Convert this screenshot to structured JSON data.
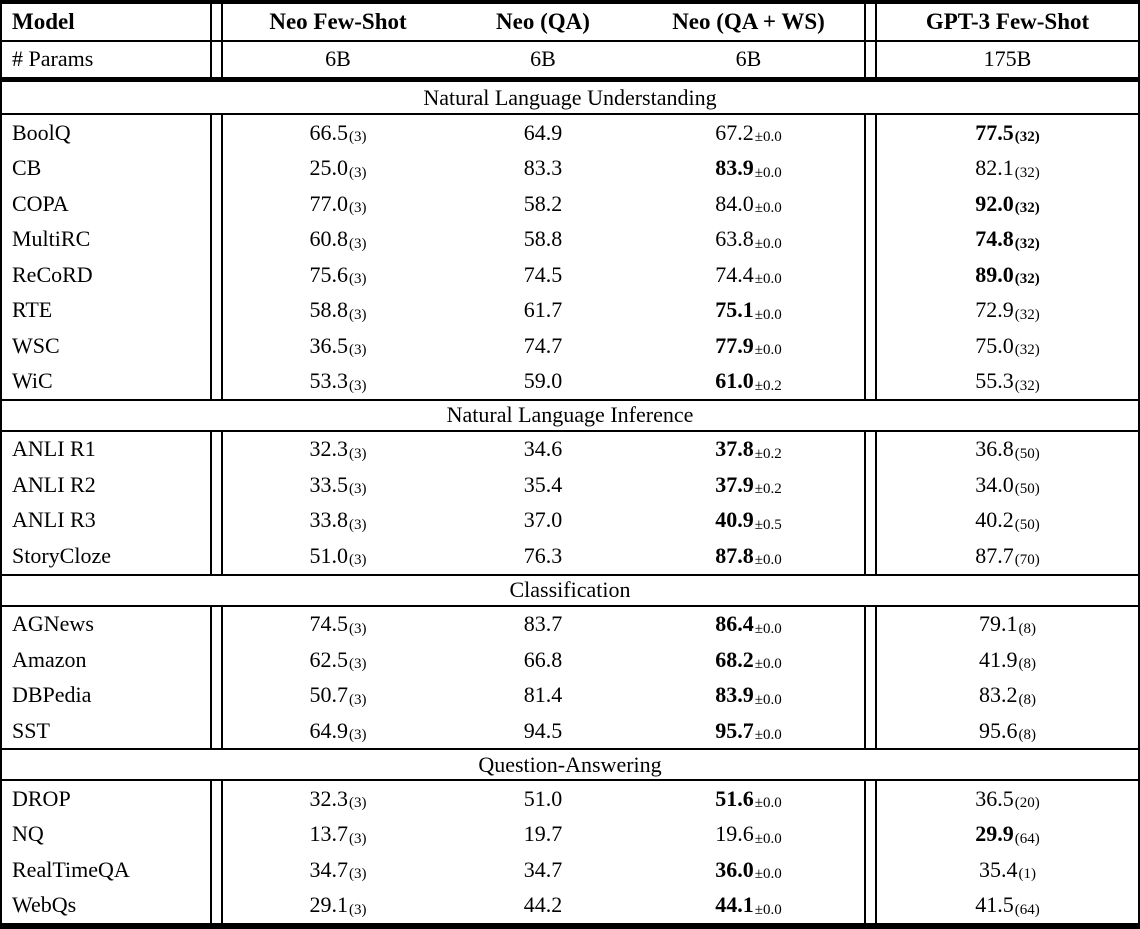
{
  "colors": {
    "text": "#000000",
    "background": "#ffffff",
    "rule": "#000000"
  },
  "table": {
    "header": {
      "model": "Model",
      "columns": [
        "Neo Few-Shot",
        "Neo (QA)",
        "Neo (QA + WS)",
        "GPT-3 Few-Shot"
      ]
    },
    "params_row": {
      "label": "# Params",
      "values": [
        "6B",
        "6B",
        "6B",
        "175B"
      ]
    },
    "sections": [
      {
        "title": "Natural Language Understanding",
        "rows": [
          {
            "task": "BoolQ",
            "cells": [
              {
                "v": "66.5",
                "s": "(3)"
              },
              {
                "v": "64.9"
              },
              {
                "v": "67.2",
                "s": "±0.0"
              },
              {
                "v": "77.5",
                "s": "(32)",
                "b": 1,
                "sb": 1
              }
            ]
          },
          {
            "task": "CB",
            "cells": [
              {
                "v": "25.0",
                "s": "(3)"
              },
              {
                "v": "83.3"
              },
              {
                "v": "83.9",
                "s": "±0.0",
                "b": 1
              },
              {
                "v": "82.1",
                "s": "(32)"
              }
            ]
          },
          {
            "task": "COPA",
            "cells": [
              {
                "v": "77.0",
                "s": "(3)"
              },
              {
                "v": "58.2"
              },
              {
                "v": "84.0",
                "s": "±0.0"
              },
              {
                "v": "92.0",
                "s": "(32)",
                "b": 1,
                "sb": 1
              }
            ]
          },
          {
            "task": "MultiRC",
            "cells": [
              {
                "v": "60.8",
                "s": "(3)"
              },
              {
                "v": "58.8"
              },
              {
                "v": "63.8",
                "s": "±0.0"
              },
              {
                "v": "74.8",
                "s": "(32)",
                "b": 1,
                "sb": 1
              }
            ]
          },
          {
            "task": "ReCoRD",
            "cells": [
              {
                "v": "75.6",
                "s": "(3)"
              },
              {
                "v": "74.5"
              },
              {
                "v": "74.4",
                "s": "±0.0"
              },
              {
                "v": "89.0",
                "s": "(32)",
                "b": 1,
                "sb": 1
              }
            ]
          },
          {
            "task": "RTE",
            "cells": [
              {
                "v": "58.8",
                "s": "(3)"
              },
              {
                "v": "61.7"
              },
              {
                "v": "75.1",
                "s": "±0.0",
                "b": 1
              },
              {
                "v": "72.9",
                "s": "(32)"
              }
            ]
          },
          {
            "task": "WSC",
            "cells": [
              {
                "v": "36.5",
                "s": "(3)"
              },
              {
                "v": "74.7"
              },
              {
                "v": "77.9",
                "s": "±0.0",
                "b": 1
              },
              {
                "v": "75.0",
                "s": "(32)"
              }
            ]
          },
          {
            "task": "WiC",
            "cells": [
              {
                "v": "53.3",
                "s": "(3)"
              },
              {
                "v": "59.0"
              },
              {
                "v": "61.0",
                "s": "±0.2",
                "b": 1
              },
              {
                "v": "55.3",
                "s": "(32)"
              }
            ]
          }
        ]
      },
      {
        "title": "Natural Language Inference",
        "rows": [
          {
            "task": "ANLI R1",
            "cells": [
              {
                "v": "32.3",
                "s": "(3)"
              },
              {
                "v": "34.6"
              },
              {
                "v": "37.8",
                "s": "±0.2",
                "b": 1
              },
              {
                "v": "36.8",
                "s": "(50)"
              }
            ]
          },
          {
            "task": "ANLI R2",
            "cells": [
              {
                "v": "33.5",
                "s": "(3)"
              },
              {
                "v": "35.4"
              },
              {
                "v": "37.9",
                "s": "±0.2",
                "b": 1
              },
              {
                "v": "34.0",
                "s": "(50)"
              }
            ]
          },
          {
            "task": "ANLI R3",
            "cells": [
              {
                "v": "33.8",
                "s": "(3)"
              },
              {
                "v": "37.0"
              },
              {
                "v": "40.9",
                "s": "±0.5",
                "b": 1
              },
              {
                "v": "40.2",
                "s": "(50)"
              }
            ]
          },
          {
            "task": "StoryCloze",
            "cells": [
              {
                "v": "51.0",
                "s": "(3)"
              },
              {
                "v": "76.3"
              },
              {
                "v": "87.8",
                "s": "±0.0",
                "b": 1
              },
              {
                "v": "87.7",
                "s": "(70)"
              }
            ]
          }
        ]
      },
      {
        "title": "Classification",
        "rows": [
          {
            "task": "AGNews",
            "cells": [
              {
                "v": "74.5",
                "s": "(3)"
              },
              {
                "v": "83.7"
              },
              {
                "v": "86.4",
                "s": "±0.0",
                "b": 1
              },
              {
                "v": "79.1",
                "s": "(8)"
              }
            ]
          },
          {
            "task": "Amazon",
            "cells": [
              {
                "v": "62.5",
                "s": "(3)"
              },
              {
                "v": "66.8"
              },
              {
                "v": "68.2",
                "s": "±0.0",
                "b": 1
              },
              {
                "v": "41.9",
                "s": "(8)"
              }
            ]
          },
          {
            "task": "DBPedia",
            "cells": [
              {
                "v": "50.7",
                "s": "(3)"
              },
              {
                "v": "81.4"
              },
              {
                "v": "83.9",
                "s": "±0.0",
                "b": 1
              },
              {
                "v": "83.2",
                "s": "(8)"
              }
            ]
          },
          {
            "task": "SST",
            "cells": [
              {
                "v": "64.9",
                "s": "(3)"
              },
              {
                "v": "94.5"
              },
              {
                "v": "95.7",
                "s": "±0.0",
                "b": 1
              },
              {
                "v": "95.6",
                "s": "(8)"
              }
            ]
          }
        ]
      },
      {
        "title": "Question-Answering",
        "rows": [
          {
            "task": "DROP",
            "cells": [
              {
                "v": "32.3",
                "s": "(3)"
              },
              {
                "v": "51.0"
              },
              {
                "v": "51.6",
                "s": "±0.0",
                "b": 1
              },
              {
                "v": "36.5",
                "s": "(20)"
              }
            ]
          },
          {
            "task": "NQ",
            "cells": [
              {
                "v": "13.7",
                "s": "(3)"
              },
              {
                "v": "19.7"
              },
              {
                "v": "19.6",
                "s": "±0.0"
              },
              {
                "v": "29.9",
                "s": "(64)",
                "b": 1
              }
            ]
          },
          {
            "task": "RealTimeQA",
            "cells": [
              {
                "v": "34.7",
                "s": "(3)"
              },
              {
                "v": "34.7"
              },
              {
                "v": "36.0",
                "s": "±0.0",
                "b": 1
              },
              {
                "v": "35.4",
                "s": "(1)"
              }
            ]
          },
          {
            "task": "WebQs",
            "cells": [
              {
                "v": "29.1",
                "s": "(3)"
              },
              {
                "v": "44.2"
              },
              {
                "v": "44.1",
                "s": "±0.0",
                "b": 1
              },
              {
                "v": "41.5",
                "s": "(64)"
              }
            ]
          }
        ]
      }
    ]
  }
}
